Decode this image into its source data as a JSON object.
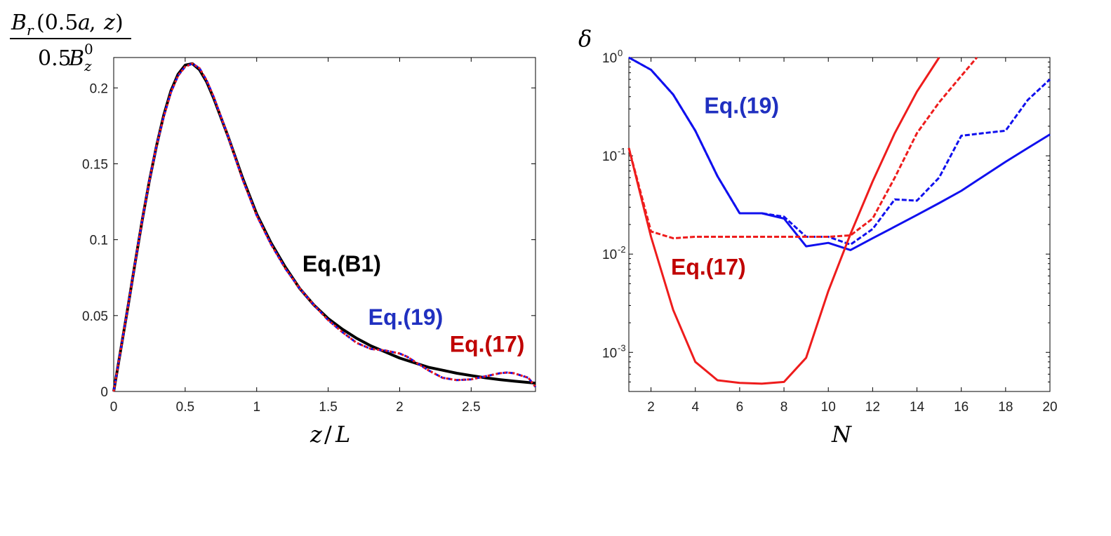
{
  "colors": {
    "black": "#000000",
    "blue": "#1010ee",
    "red": "#ee1c1c",
    "label_blue": "#2030c0",
    "label_red": "#c00000"
  },
  "chart_data": [
    {
      "type": "line",
      "ylabel_num": {
        "B": "B",
        "r": "r",
        "args": "(0.5",
        "a": "a",
        "comma": ", ",
        "z": "z",
        "close": ")"
      },
      "ylabel_den": {
        "coef": "0.5",
        "B": "B",
        "z": "z",
        "zero": "0"
      },
      "xlabel": {
        "z": "z",
        "slash": "/",
        "L": "L"
      },
      "xlim": [
        0,
        2.95
      ],
      "ylim": [
        0,
        0.22
      ],
      "xticks": [
        "0",
        "0.5",
        "1",
        "1.5",
        "2",
        "2.5"
      ],
      "yticks": [
        "0",
        "0.05",
        "0.1",
        "0.15",
        "0.2"
      ],
      "series": [
        {
          "name": "Eq.(B1)",
          "style": "solid",
          "color": "#000000",
          "x": [
            0,
            0.05,
            0.1,
            0.15,
            0.2,
            0.25,
            0.3,
            0.35,
            0.4,
            0.45,
            0.5,
            0.55,
            0.6,
            0.65,
            0.7,
            0.8,
            0.9,
            1.0,
            1.1,
            1.2,
            1.3,
            1.4,
            1.5,
            1.6,
            1.7,
            1.8,
            1.9,
            2.0,
            2.1,
            2.2,
            2.3,
            2.4,
            2.5,
            2.6,
            2.7,
            2.8,
            2.95
          ],
          "y": [
            0,
            0.028,
            0.056,
            0.085,
            0.113,
            0.139,
            0.162,
            0.182,
            0.198,
            0.209,
            0.215,
            0.216,
            0.212,
            0.204,
            0.193,
            0.168,
            0.141,
            0.117,
            0.098,
            0.082,
            0.068,
            0.057,
            0.048,
            0.041,
            0.035,
            0.03,
            0.026,
            0.022,
            0.019,
            0.016,
            0.014,
            0.012,
            0.0105,
            0.009,
            0.0078,
            0.0068,
            0.0055
          ]
        },
        {
          "name": "Eq.(19)",
          "style": "dashed",
          "color": "#1010ee",
          "x": [
            0,
            0.05,
            0.1,
            0.15,
            0.2,
            0.25,
            0.3,
            0.35,
            0.4,
            0.45,
            0.5,
            0.55,
            0.6,
            0.65,
            0.7,
            0.8,
            0.9,
            1.0,
            1.1,
            1.2,
            1.3,
            1.4,
            1.5,
            1.6,
            1.7,
            1.8,
            1.9,
            2.0,
            2.05,
            2.1,
            2.2,
            2.3,
            2.4,
            2.5,
            2.6,
            2.7,
            2.75,
            2.8,
            2.9,
            2.95
          ],
          "y": [
            0,
            0.028,
            0.056,
            0.085,
            0.113,
            0.139,
            0.162,
            0.181,
            0.197,
            0.208,
            0.214,
            0.216,
            0.213,
            0.205,
            0.194,
            0.168,
            0.14,
            0.116,
            0.097,
            0.081,
            0.068,
            0.057,
            0.047,
            0.039,
            0.032,
            0.028,
            0.027,
            0.025,
            0.023,
            0.02,
            0.014,
            0.009,
            0.0075,
            0.008,
            0.01,
            0.012,
            0.0125,
            0.012,
            0.009,
            0.003
          ]
        },
        {
          "name": "Eq.(17)",
          "style": "dotted",
          "color": "#ee1c1c",
          "x": [
            0,
            0.05,
            0.1,
            0.15,
            0.2,
            0.25,
            0.3,
            0.35,
            0.4,
            0.45,
            0.5,
            0.55,
            0.6,
            0.65,
            0.7,
            0.8,
            0.9,
            1.0,
            1.1,
            1.2,
            1.3,
            1.4,
            1.5,
            1.6,
            1.7,
            1.8,
            1.9,
            2.0,
            2.05,
            2.1,
            2.2,
            2.3,
            2.4,
            2.5,
            2.6,
            2.7,
            2.75,
            2.8,
            2.9,
            2.95
          ],
          "y": [
            0,
            0.028,
            0.056,
            0.085,
            0.113,
            0.139,
            0.162,
            0.181,
            0.197,
            0.208,
            0.214,
            0.216,
            0.213,
            0.205,
            0.194,
            0.168,
            0.14,
            0.116,
            0.097,
            0.081,
            0.068,
            0.057,
            0.047,
            0.039,
            0.032,
            0.028,
            0.027,
            0.025,
            0.023,
            0.02,
            0.014,
            0.009,
            0.0075,
            0.008,
            0.01,
            0.012,
            0.0125,
            0.012,
            0.009,
            0.003
          ]
        }
      ],
      "annotations": [
        {
          "text": "Eq.(B1)",
          "color": "#000000",
          "at": [
            1.32,
            0.079
          ]
        },
        {
          "text": "Eq.(19)",
          "color": "#2030c0",
          "at": [
            1.78,
            0.044
          ]
        },
        {
          "text": "Eq.(17)",
          "color": "#c00000",
          "at": [
            2.35,
            0.026
          ]
        }
      ]
    },
    {
      "type": "line",
      "yscale": "log",
      "ylabel": "δ",
      "xlabel": "N",
      "xlim": [
        1,
        20
      ],
      "ylim": [
        0.0004,
        1.0
      ],
      "xticks": [
        "2",
        "4",
        "6",
        "8",
        "10",
        "12",
        "14",
        "16",
        "18",
        "20"
      ],
      "yticks": [
        {
          "base": "10",
          "exp": "0",
          "value": 1
        },
        {
          "base": "10",
          "exp": "-1",
          "value": 0.1
        },
        {
          "base": "10",
          "exp": "-2",
          "value": 0.01
        },
        {
          "base": "10",
          "exp": "-3",
          "value": 0.001
        }
      ],
      "series": [
        {
          "name": "Eq.(19)",
          "style": "solid",
          "color": "#1010ee",
          "x": [
            1,
            2,
            3,
            4,
            5,
            6,
            7,
            8,
            9,
            10,
            11,
            12,
            13,
            14,
            15,
            16,
            17,
            18,
            19,
            20
          ],
          "y": [
            1.0,
            0.75,
            0.42,
            0.18,
            0.062,
            0.026,
            0.026,
            0.023,
            0.012,
            0.013,
            0.011,
            0.0145,
            0.019,
            0.025,
            0.033,
            0.044,
            0.062,
            0.087,
            0.12,
            0.165
          ]
        },
        {
          "name": "Eq.(19) dashed",
          "style": "dashed",
          "color": "#1010ee",
          "x": [
            1,
            2,
            3,
            4,
            5,
            6,
            7,
            8,
            9,
            10,
            11,
            12,
            13,
            14,
            15,
            16,
            17,
            18,
            19,
            20
          ],
          "y": [
            1.0,
            0.75,
            0.42,
            0.18,
            0.062,
            0.026,
            0.026,
            0.024,
            0.015,
            0.015,
            0.0125,
            0.018,
            0.036,
            0.035,
            0.06,
            0.16,
            0.17,
            0.18,
            0.37,
            0.6
          ]
        },
        {
          "name": "Eq.(17)",
          "style": "solid",
          "color": "#ee1c1c",
          "x": [
            1,
            2,
            3,
            4,
            5,
            6,
            7,
            8,
            9,
            10,
            11,
            12,
            13,
            14,
            15
          ],
          "y": [
            0.12,
            0.015,
            0.0027,
            0.0008,
            0.00052,
            0.00049,
            0.00048,
            0.0005,
            0.00088,
            0.0042,
            0.016,
            0.055,
            0.17,
            0.45,
            1.0
          ]
        },
        {
          "name": "Eq.(17) dashed",
          "style": "dashed",
          "color": "#ee1c1c",
          "x": [
            1,
            2,
            3,
            4,
            5,
            6,
            7,
            8,
            9,
            10,
            11,
            12,
            13,
            14,
            15,
            16,
            16.7
          ],
          "y": [
            0.12,
            0.017,
            0.0145,
            0.015,
            0.015,
            0.015,
            0.015,
            0.015,
            0.015,
            0.015,
            0.0155,
            0.023,
            0.06,
            0.17,
            0.35,
            0.65,
            1.0
          ]
        }
      ],
      "annotations": [
        {
          "text": "Eq.(19)",
          "color": "#2030c0",
          "at": [
            4.4,
            0.27
          ]
        },
        {
          "text": "Eq.(17)",
          "color": "#c00000",
          "at": [
            2.9,
            0.0062
          ]
        }
      ]
    }
  ]
}
